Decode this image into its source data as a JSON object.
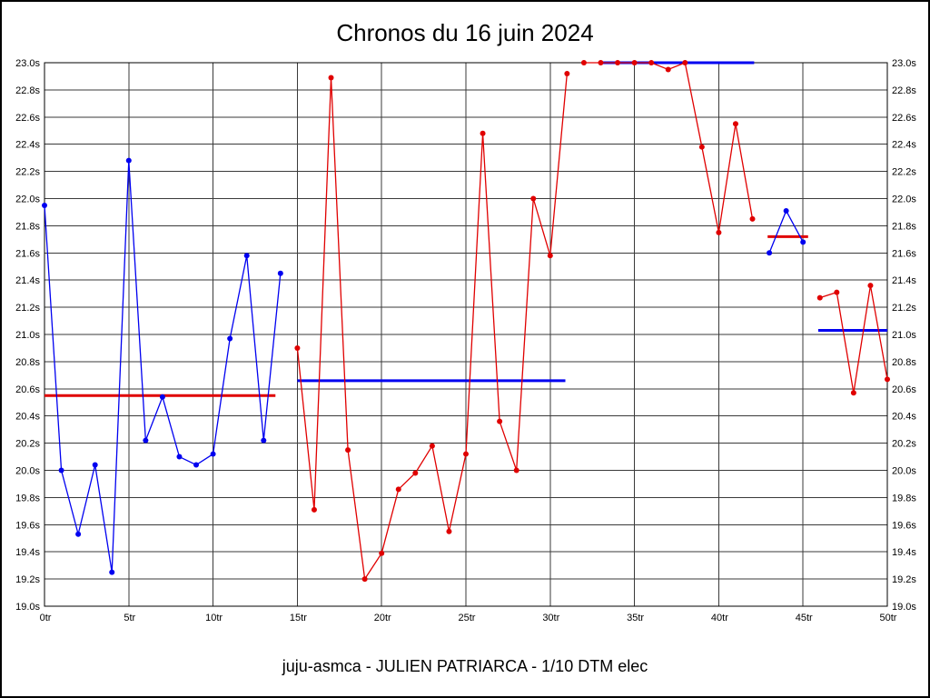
{
  "chart_data": {
    "type": "line",
    "title": "Chronos du 16 juin 2024",
    "caption": "juju-asmca - JULIEN PATRIARCA - 1/10 DTM elec",
    "x_unit": "tr",
    "y_unit": "s",
    "xlim": [
      0,
      50
    ],
    "ylim": [
      19.0,
      23.0
    ],
    "grid": true,
    "legend": "none",
    "x_ticks": [
      0,
      5,
      10,
      15,
      20,
      25,
      30,
      35,
      40,
      45,
      50
    ],
    "y_ticks": [
      19.0,
      19.2,
      19.4,
      19.6,
      19.8,
      20.0,
      20.2,
      20.4,
      20.6,
      20.8,
      21.0,
      21.2,
      21.4,
      21.6,
      21.8,
      22.0,
      22.2,
      22.4,
      22.6,
      22.8,
      23.0
    ],
    "colors": {
      "blue": "#0000f0",
      "red": "#e00000"
    },
    "series": [
      {
        "name": "laps-0-14",
        "color": "#0000f0",
        "x": [
          0,
          1,
          2,
          3,
          4,
          5,
          6,
          7,
          8,
          9,
          10,
          11,
          12,
          13,
          14
        ],
        "values": [
          21.95,
          20.0,
          19.53,
          20.04,
          19.25,
          22.28,
          20.22,
          20.54,
          20.1,
          20.04,
          20.12,
          20.97,
          21.58,
          20.22,
          21.45
        ]
      },
      {
        "name": "laps-15-31",
        "color": "#e00000",
        "x": [
          15,
          16,
          17,
          18,
          19,
          20,
          21,
          22,
          23,
          24,
          25,
          26,
          27,
          28,
          29,
          30,
          31
        ],
        "values": [
          20.9,
          19.71,
          22.89,
          20.15,
          19.2,
          19.39,
          19.86,
          19.98,
          20.18,
          19.55,
          20.12,
          22.48,
          20.36,
          20.0,
          22.0,
          21.58,
          22.92
        ]
      },
      {
        "name": "laps-32-42",
        "color": "#e00000",
        "x": [
          32,
          33,
          34,
          35,
          36,
          37,
          38,
          39,
          40,
          41,
          42
        ],
        "values": [
          23.0,
          23.0,
          23.0,
          23.0,
          23.0,
          22.95,
          23.0,
          22.38,
          21.75,
          22.55,
          21.85
        ]
      },
      {
        "name": "laps-43-45",
        "color": "#0000f0",
        "x": [
          43,
          44,
          45
        ],
        "values": [
          21.6,
          21.91,
          21.68
        ]
      },
      {
        "name": "laps-46-50",
        "color": "#e00000",
        "x": [
          46,
          47,
          48,
          49,
          50
        ],
        "values": [
          21.27,
          21.31,
          20.57,
          21.36,
          20.67
        ]
      }
    ],
    "average_lines": [
      {
        "name": "average-laps-0-14",
        "color": "#e00000",
        "y": 20.55,
        "x1": 0,
        "x2": 13.7
      },
      {
        "name": "average-laps-15-31",
        "color": "#0000f0",
        "y": 20.66,
        "x1": 15,
        "x2": 30.9
      },
      {
        "name": "average-laps-32-42",
        "color": "#0000f0",
        "y": 23.0,
        "x1": 33,
        "x2": 42.1
      },
      {
        "name": "average-laps-43-45",
        "color": "#e00000",
        "y": 21.72,
        "x1": 42.9,
        "x2": 45.3
      },
      {
        "name": "average-laps-46-50",
        "color": "#0000f0",
        "y": 21.03,
        "x1": 45.9,
        "x2": 50
      }
    ]
  }
}
